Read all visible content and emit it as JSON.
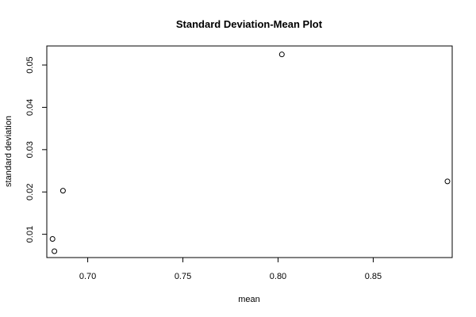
{
  "chart_data": {
    "type": "scatter",
    "title": "Standard Deviation-Mean Plot",
    "xlabel": "mean",
    "ylabel": "standard deviation",
    "xlim": [
      0.6785,
      0.8915
    ],
    "ylim": [
      0.0045,
      0.0545
    ],
    "x_ticks": [
      0.7,
      0.75,
      0.8,
      0.85
    ],
    "x_tick_labels": [
      "0.70",
      "0.75",
      "0.80",
      "0.85"
    ],
    "y_ticks": [
      0.01,
      0.02,
      0.03,
      0.04,
      0.05
    ],
    "y_tick_labels": [
      "0.01",
      "0.02",
      "0.03",
      "0.04",
      "0.05"
    ],
    "grid": false,
    "marker": "open-circle",
    "points": [
      {
        "x": 0.6815,
        "y": 0.0089
      },
      {
        "x": 0.6825,
        "y": 0.006
      },
      {
        "x": 0.687,
        "y": 0.0203
      },
      {
        "x": 0.802,
        "y": 0.0525
      },
      {
        "x": 0.889,
        "y": 0.0225
      }
    ]
  }
}
